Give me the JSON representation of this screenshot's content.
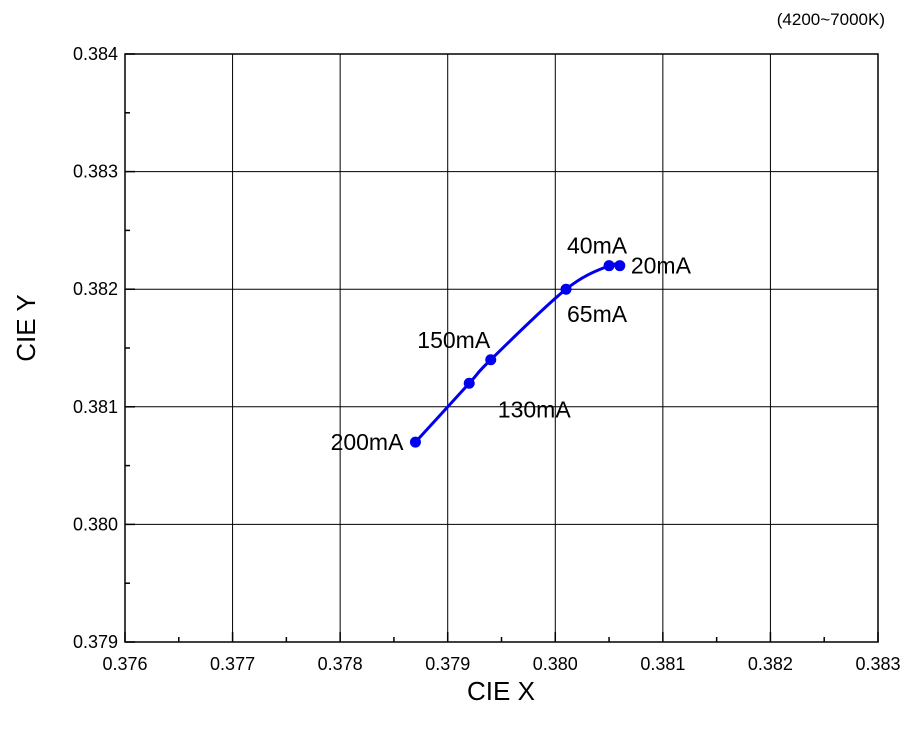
{
  "chart_data": {
    "type": "line",
    "subtitle": "(4200~7000K)",
    "xlabel": "CIE X",
    "ylabel": "CIE Y",
    "xlim": [
      0.376,
      0.383
    ],
    "ylim": [
      0.379,
      0.384
    ],
    "x_ticks": [
      "0.376",
      "0.377",
      "0.378",
      "0.379",
      "0.380",
      "0.381",
      "0.382",
      "0.383"
    ],
    "y_ticks": [
      "0.379",
      "0.380",
      "0.381",
      "0.382",
      "0.383",
      "0.384"
    ],
    "grid": true,
    "series": [
      {
        "color": "#0000ee",
        "points": [
          {
            "label": "20mA",
            "x": 0.3806,
            "y": 0.3822
          },
          {
            "label": "40mA",
            "x": 0.3805,
            "y": 0.3822
          },
          {
            "label": "65mA",
            "x": 0.3801,
            "y": 0.382
          },
          {
            "label": "150mA",
            "x": 0.3794,
            "y": 0.3814
          },
          {
            "label": "130mA",
            "x": 0.3792,
            "y": 0.3812
          },
          {
            "label": "200mA",
            "x": 0.3787,
            "y": 0.3807
          }
        ]
      }
    ]
  }
}
